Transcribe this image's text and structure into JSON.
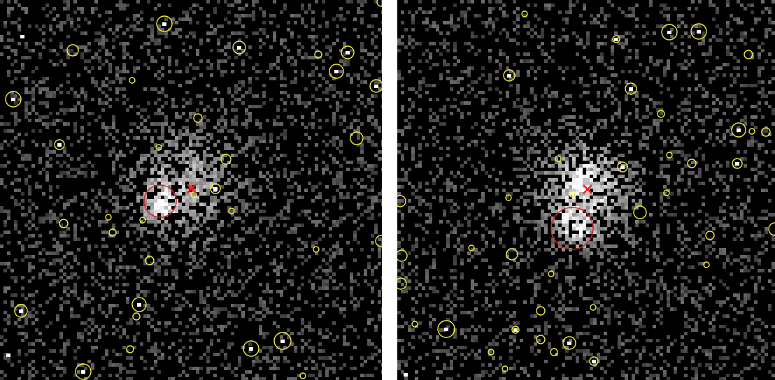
{
  "overlay_colors": {
    "source_circle": "#f2ee3a",
    "target_circle": "#d42a2a",
    "center_marker": "#ff1a1a",
    "background": "#000000"
  },
  "panels": [
    {
      "id": "left",
      "has_cluster_emission": true,
      "has_center_marker": true,
      "has_target_region": true
    },
    {
      "id": "right",
      "has_cluster_emission": true,
      "has_center_marker": true,
      "has_target_region": true
    }
  ]
}
